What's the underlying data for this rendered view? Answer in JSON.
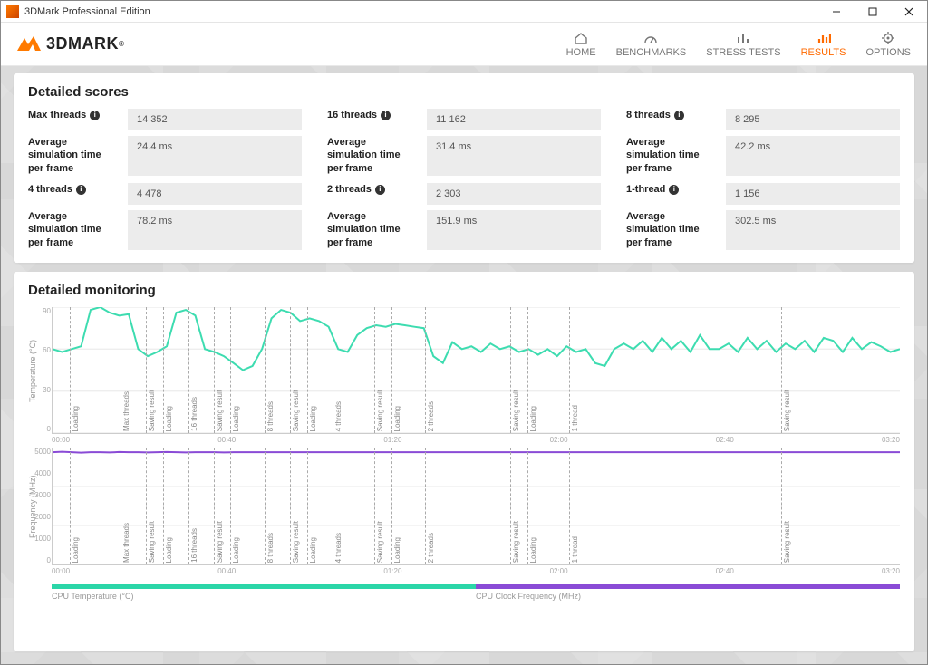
{
  "window": {
    "title": "3DMark Professional Edition"
  },
  "brand": {
    "name": "3DMARK",
    "reg": "®"
  },
  "nav": {
    "items": [
      {
        "label": "HOME"
      },
      {
        "label": "BENCHMARKS"
      },
      {
        "label": "STRESS TESTS"
      },
      {
        "label": "RESULTS",
        "active": true
      },
      {
        "label": "OPTIONS"
      }
    ]
  },
  "scores": {
    "title": "Detailed scores",
    "avg_label": "Average simulation time per frame",
    "blocks": [
      {
        "title": "Max threads",
        "score": "14 352",
        "avg": "24.4 ms"
      },
      {
        "title": "16 threads",
        "score": "11 162",
        "avg": "31.4 ms"
      },
      {
        "title": "8 threads",
        "score": "8 295",
        "avg": "42.2 ms"
      },
      {
        "title": "4 threads",
        "score": "4 478",
        "avg": "78.2 ms"
      },
      {
        "title": "2 threads",
        "score": "2 303",
        "avg": "151.9 ms"
      },
      {
        "title": "1-thread",
        "score": "1 156",
        "avg": "302.5 ms"
      }
    ]
  },
  "monitoring": {
    "title": "Detailed monitoring",
    "temp": {
      "ylabel": "Temperature (°C)",
      "ylim": [
        0,
        90
      ],
      "yticks": [
        "90",
        "60",
        "30",
        "0"
      ],
      "color": "#3ddcb0",
      "series": [
        60,
        58,
        60,
        62,
        88,
        90,
        86,
        84,
        85,
        60,
        55,
        58,
        62,
        86,
        88,
        84,
        60,
        58,
        55,
        50,
        45,
        48,
        60,
        82,
        88,
        86,
        80,
        82,
        80,
        76,
        60,
        58,
        70,
        75,
        77,
        76,
        78,
        77,
        76,
        75,
        55,
        50,
        65,
        60,
        62,
        58,
        64,
        60,
        62,
        58,
        60,
        56,
        60,
        55,
        62,
        58,
        60,
        50,
        48,
        60,
        64,
        60,
        66,
        58,
        68,
        60,
        66,
        58,
        70,
        60,
        60,
        64,
        58,
        68,
        60,
        66,
        58,
        64,
        60,
        66,
        58,
        68,
        66,
        58,
        68,
        60,
        65,
        62,
        58,
        60
      ]
    },
    "freq": {
      "ylabel": "Frequency (MHz)",
      "ylim": [
        0,
        5000
      ],
      "yticks": [
        "5000",
        "4000",
        "3000",
        "2000",
        "1000",
        "0"
      ],
      "color": "#8a4bd6",
      "series": [
        4800,
        4820,
        4800,
        4780,
        4800,
        4800,
        4790,
        4810,
        4800,
        4800,
        4790,
        4800,
        4810,
        4800,
        4790,
        4800,
        4800,
        4800,
        4790,
        4800,
        4800,
        4800,
        4800,
        4800,
        4800,
        4800,
        4800,
        4800,
        4800,
        4800,
        4800,
        4800,
        4800,
        4800,
        4800,
        4800,
        4800,
        4800,
        4800,
        4800,
        4800,
        4800,
        4800,
        4800,
        4800,
        4800,
        4800,
        4800,
        4800,
        4800,
        4800,
        4800,
        4800,
        4800,
        4800,
        4800,
        4800,
        4800,
        4800,
        4800,
        4800,
        4800,
        4800,
        4800,
        4800,
        4800,
        4800,
        4800,
        4800,
        4800,
        4800,
        4800,
        4800,
        4800,
        4800,
        4800,
        4800,
        4800,
        4800,
        4800,
        4800,
        4800,
        4800,
        4800,
        4800,
        4800,
        4800,
        4800,
        4800,
        4800
      ]
    },
    "xticks": [
      "00:00",
      "00:40",
      "01:20",
      "02:00",
      "02:40",
      "03:20"
    ],
    "markers": [
      {
        "pct": 2,
        "label": "Loading"
      },
      {
        "pct": 8,
        "label": "Max threads"
      },
      {
        "pct": 11,
        "label": "Saving result"
      },
      {
        "pct": 13,
        "label": "Loading"
      },
      {
        "pct": 16,
        "label": "16 threads"
      },
      {
        "pct": 19,
        "label": "Saving result"
      },
      {
        "pct": 21,
        "label": "Loading"
      },
      {
        "pct": 25,
        "label": "8 threads"
      },
      {
        "pct": 28,
        "label": "Saving result"
      },
      {
        "pct": 30,
        "label": "Loading"
      },
      {
        "pct": 33,
        "label": "4 threads"
      },
      {
        "pct": 38,
        "label": "Saving result"
      },
      {
        "pct": 40,
        "label": "Loading"
      },
      {
        "pct": 44,
        "label": "2 threads"
      },
      {
        "pct": 54,
        "label": "Saving result"
      },
      {
        "pct": 56,
        "label": "Loading"
      },
      {
        "pct": 61,
        "label": "1 thread"
      },
      {
        "pct": 86,
        "label": "Saving result"
      }
    ],
    "legend": {
      "temp_label": "CPU Temperature (°C)",
      "temp_color": "#2bd6a8",
      "freq_label": "CPU Clock Frequency (MHz)",
      "freq_color": "#8a4bd6"
    }
  }
}
